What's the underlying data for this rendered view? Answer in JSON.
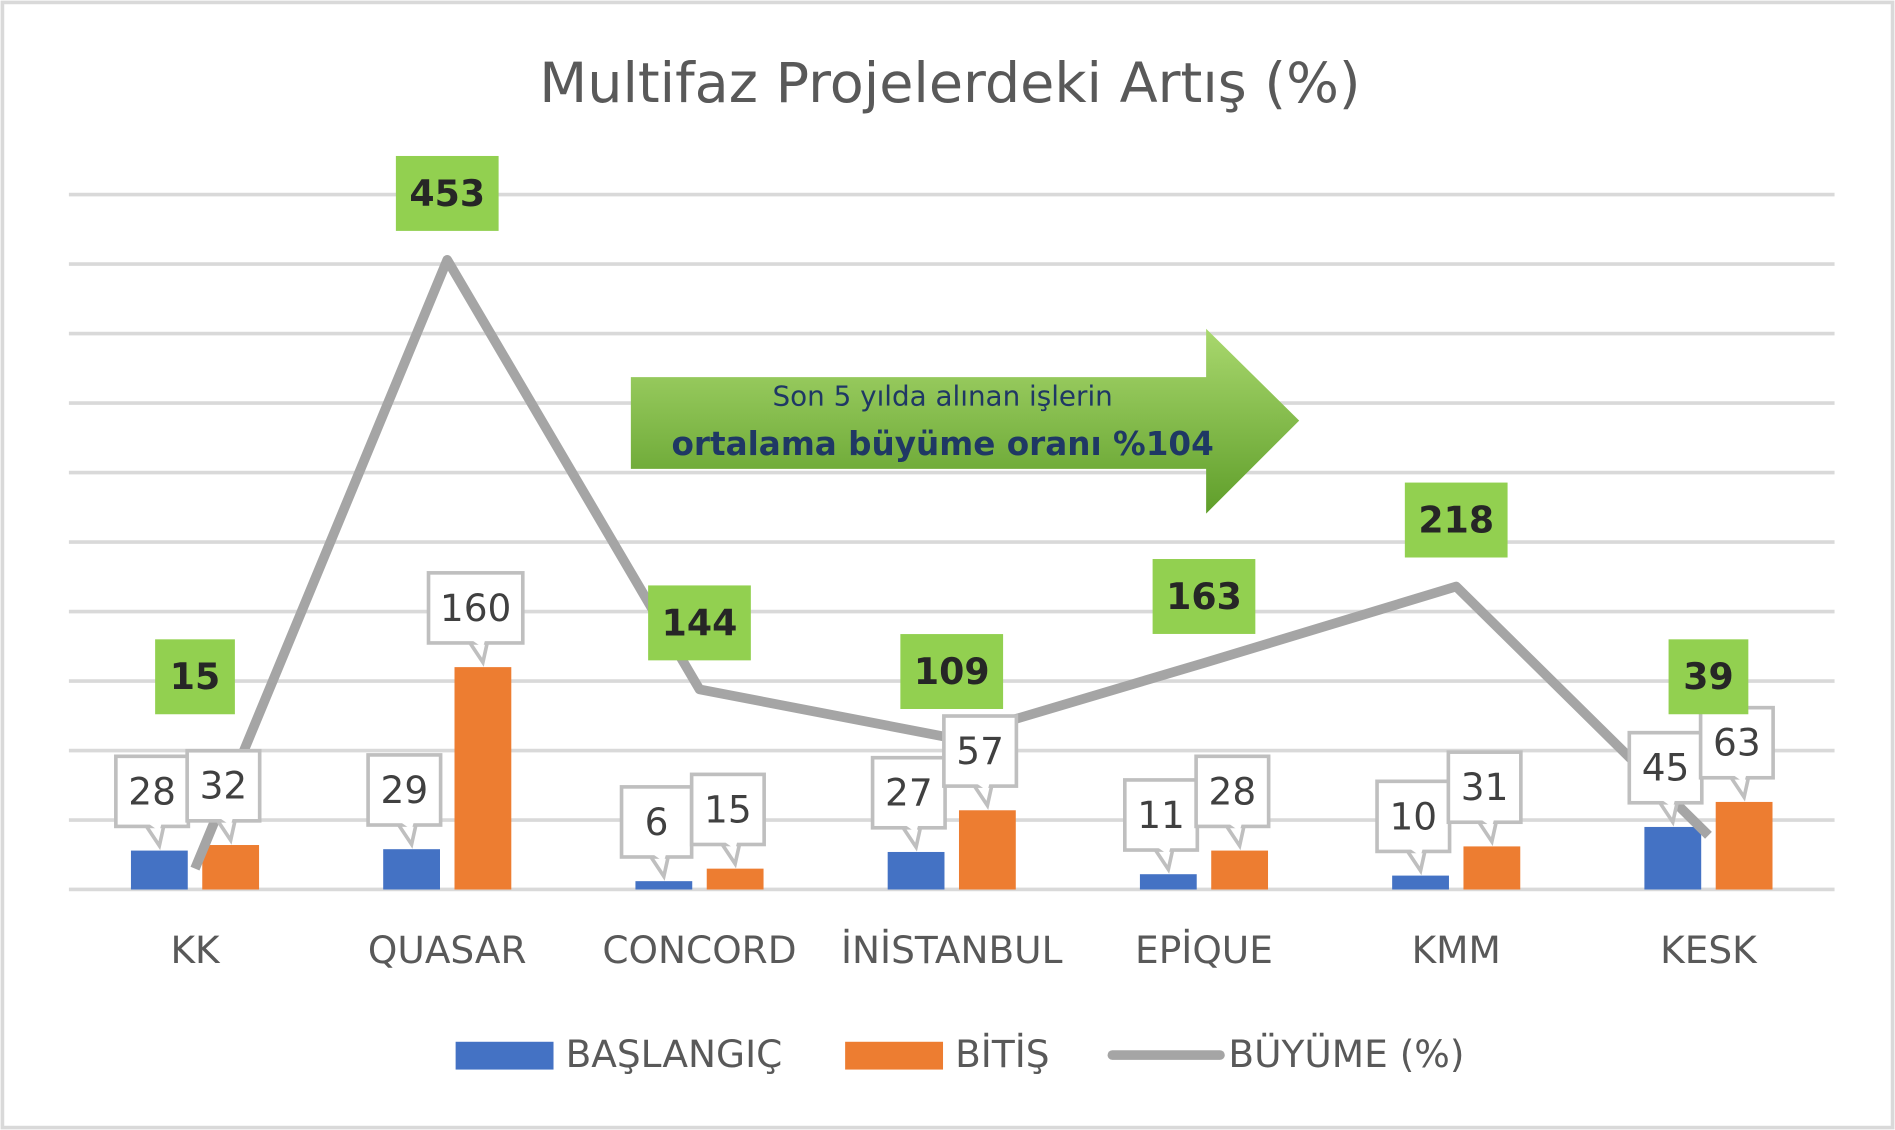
{
  "chart_data": {
    "type": "bar_line",
    "title": "Multifaz Projelerdeki Artış (%)",
    "categories": [
      "KK",
      "QUASAR",
      "CONCORD",
      "İNİSTANBUL",
      "EPİQUE",
      "KMM",
      "KESK"
    ],
    "series": [
      {
        "name": "BAŞLANGIÇ",
        "type": "bar",
        "color": "#4472c4",
        "values": [
          28,
          29,
          6,
          27,
          11,
          10,
          45
        ]
      },
      {
        "name": "BİTİŞ",
        "type": "bar",
        "color": "#ed7d31",
        "values": [
          32,
          160,
          15,
          57,
          28,
          31,
          63
        ]
      },
      {
        "name": "BÜYÜME (%)",
        "type": "line",
        "color": "#a5a5a5",
        "label_color": "#92d050",
        "values": [
          15,
          453,
          144,
          109,
          163,
          218,
          39
        ]
      }
    ],
    "ylim": [
      0,
      500
    ],
    "yticks": [
      0,
      50,
      100,
      150,
      200,
      250,
      300,
      350,
      400,
      450,
      500
    ],
    "grid": true,
    "legend": "bottom",
    "annotation": {
      "lines": [
        "Son 5 yılda alınan işlerin",
        "ortalama büyüme oranı  %104"
      ]
    }
  }
}
